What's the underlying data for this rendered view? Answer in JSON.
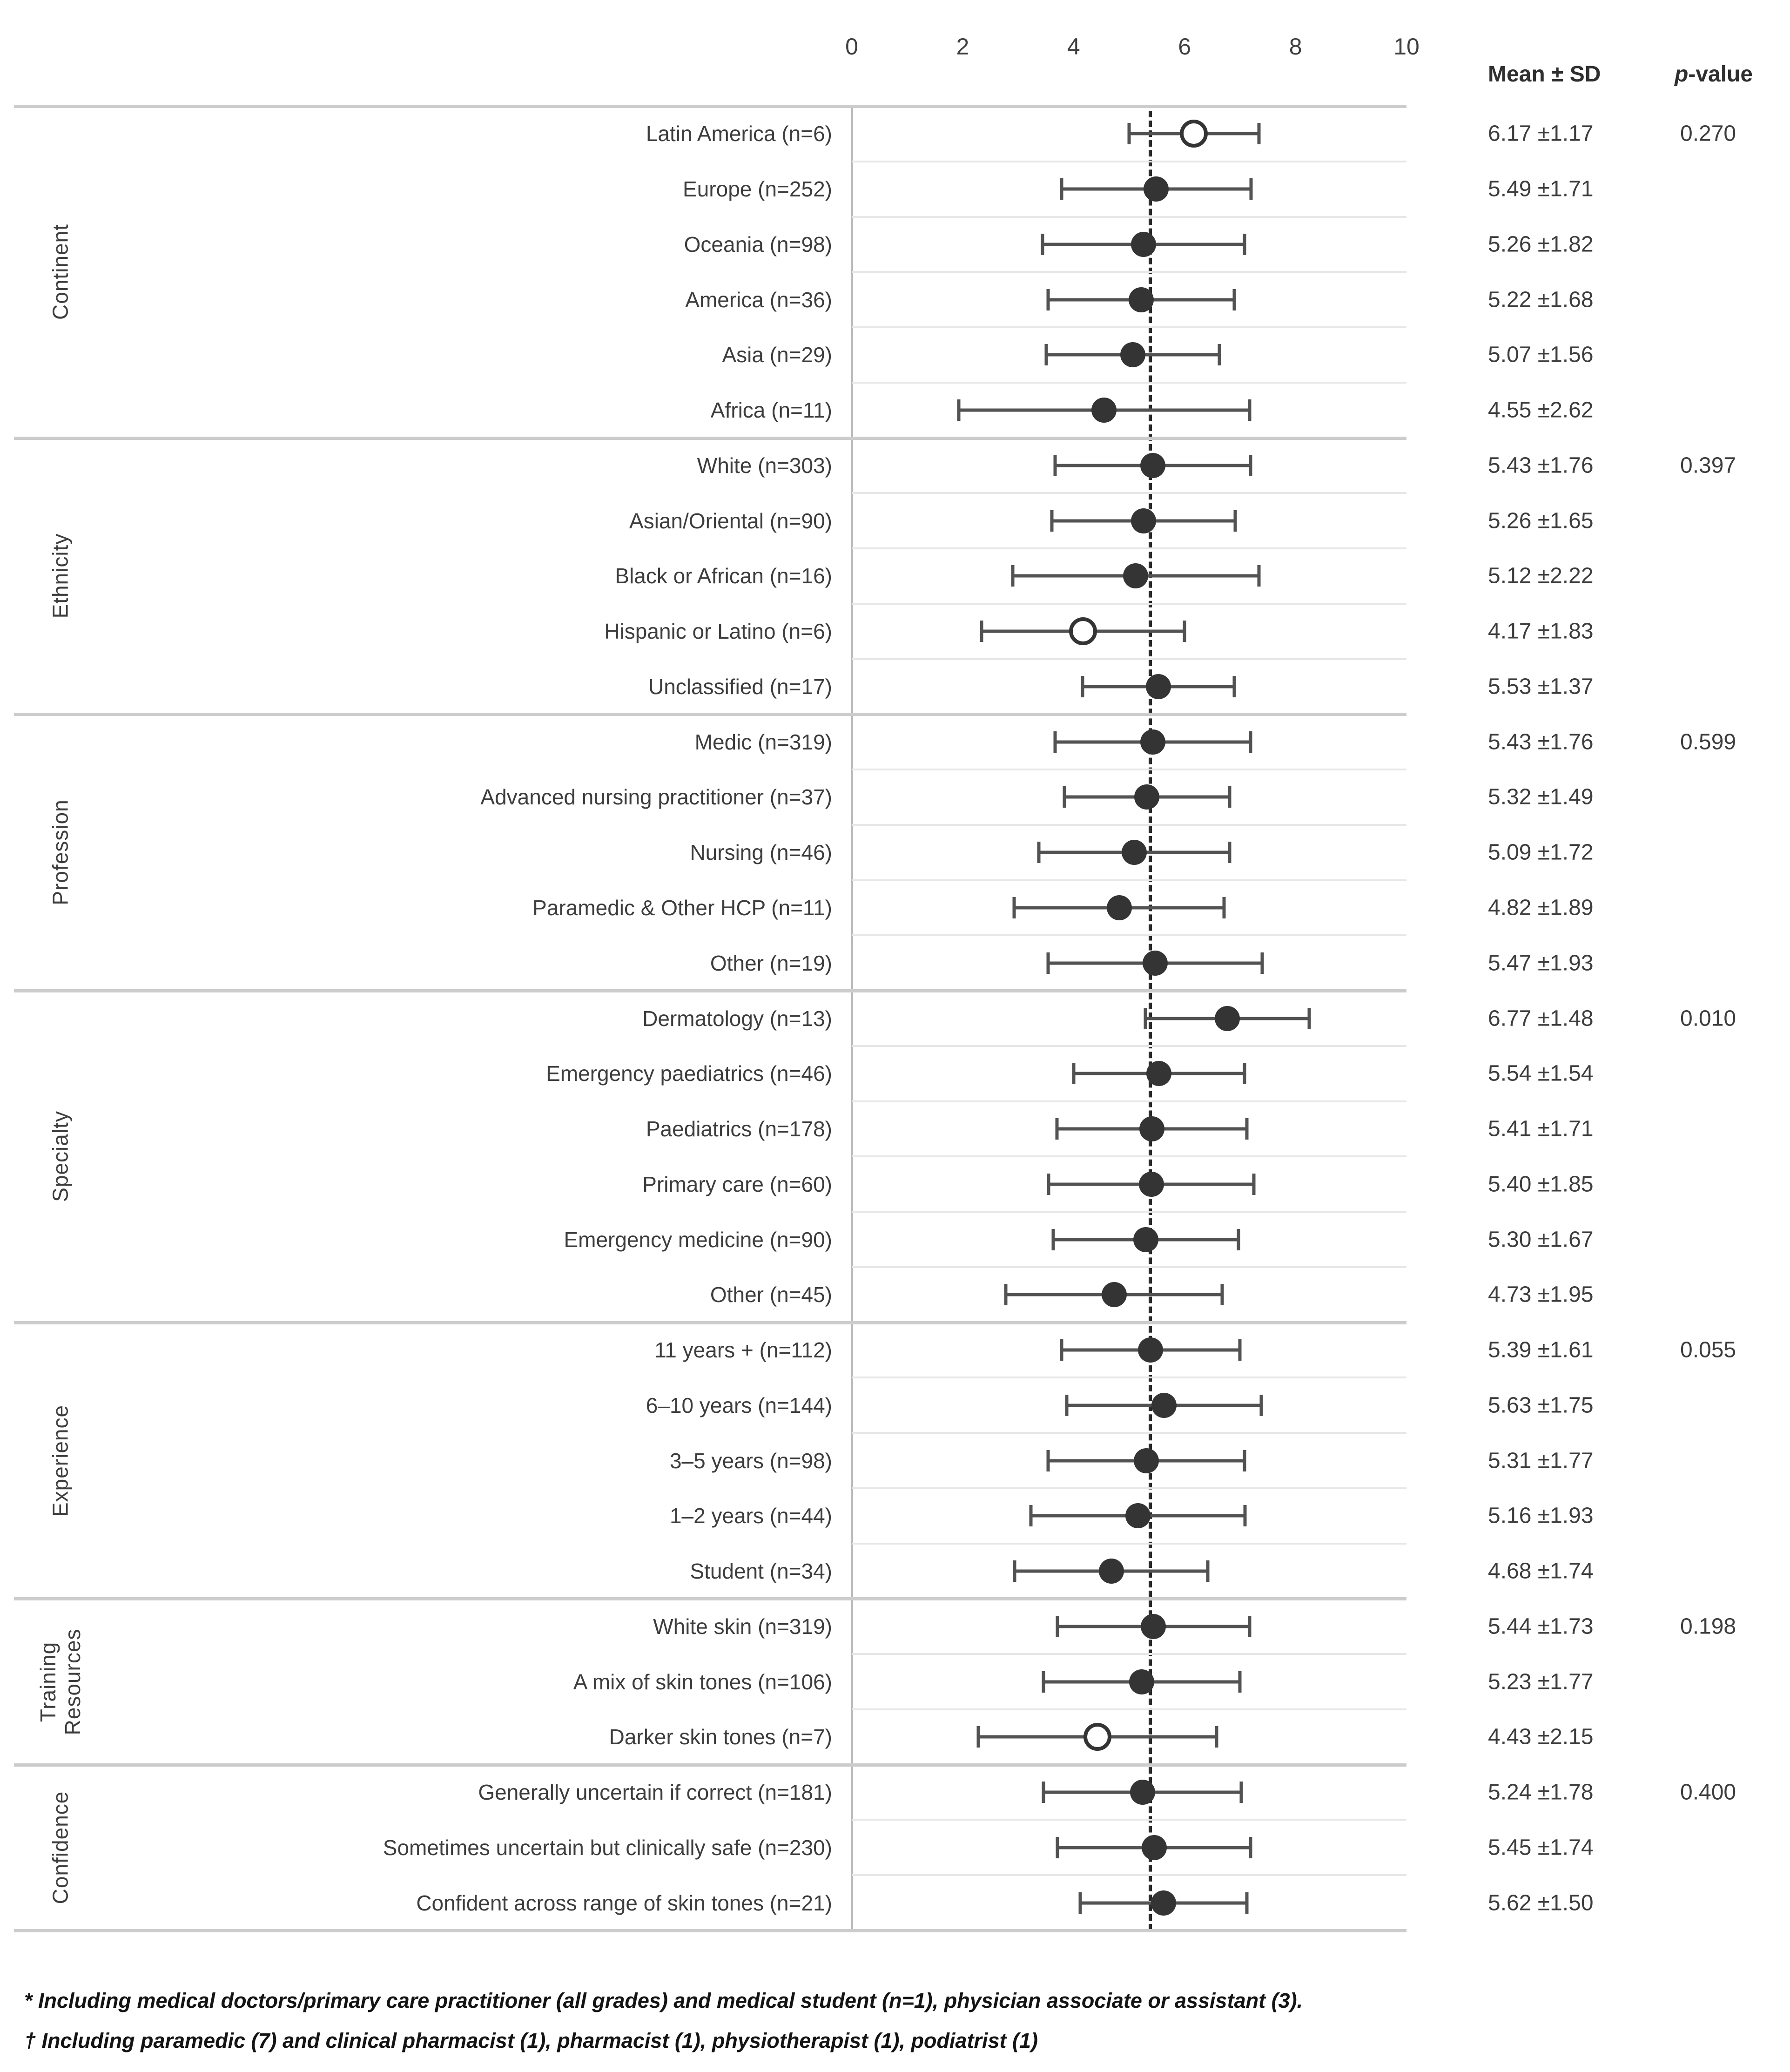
{
  "figure": {
    "headers": {
      "mean_sd": "Mean ± SD",
      "p_italic": "p",
      "p_rest": "-value"
    },
    "footnotes": [
      "* Including medical doctors/primary care practitioner (all grades) and medical student (n=1), physician associate or assistant (3).",
      "† Including paramedic (7) and clinical pharmacist (1), pharmacist (1), physiotherapist (1), podiatrist (1)"
    ]
  },
  "chart_data": {
    "type": "scatter",
    "subtype": "forest-plot-dot-whisker",
    "title": "",
    "xlabel": "",
    "ylabel": "",
    "xlim": [
      0,
      10
    ],
    "x_ticks": [
      0,
      2,
      4,
      6,
      8,
      10
    ],
    "grid": "row-separators",
    "reference_line": 5.38,
    "columns": [
      "Mean ± SD",
      "p-value"
    ],
    "groups": [
      {
        "name": "Continent",
        "p_value": "0.270",
        "rows": [
          {
            "label": "Latin America (n=6)",
            "mean": 6.17,
            "sd": 1.17,
            "mean_sd": "6.17 ±1.17",
            "open": true
          },
          {
            "label": "Europe (n=252)",
            "mean": 5.49,
            "sd": 1.71,
            "mean_sd": "5.49 ±1.71",
            "open": false
          },
          {
            "label": "Oceania (n=98)",
            "mean": 5.26,
            "sd": 1.82,
            "mean_sd": "5.26 ±1.82",
            "open": false
          },
          {
            "label": "America (n=36)",
            "mean": 5.22,
            "sd": 1.68,
            "mean_sd": "5.22 ±1.68",
            "open": false
          },
          {
            "label": "Asia (n=29)",
            "mean": 5.07,
            "sd": 1.56,
            "mean_sd": "5.07 ±1.56",
            "open": false
          },
          {
            "label": "Africa  (n=11)",
            "mean": 4.55,
            "sd": 2.62,
            "mean_sd": "4.55 ±2.62",
            "open": false
          }
        ]
      },
      {
        "name": "Ethnicity",
        "p_value": "0.397",
        "rows": [
          {
            "label": "White (n=303)",
            "mean": 5.43,
            "sd": 1.76,
            "mean_sd": "5.43 ±1.76",
            "open": false
          },
          {
            "label": "Asian/Oriental (n=90)",
            "mean": 5.26,
            "sd": 1.65,
            "mean_sd": "5.26 ±1.65",
            "open": false
          },
          {
            "label": "Black or African (n=16)",
            "mean": 5.12,
            "sd": 2.22,
            "mean_sd": "5.12 ±2.22",
            "open": false
          },
          {
            "label": "Hispanic or Latino (n=6)",
            "mean": 4.17,
            "sd": 1.83,
            "mean_sd": "4.17 ±1.83",
            "open": true
          },
          {
            "label": "Unclassified (n=17)",
            "mean": 5.53,
            "sd": 1.37,
            "mean_sd": "5.53 ±1.37",
            "open": false
          }
        ]
      },
      {
        "name": "Profession",
        "p_value": "0.599",
        "rows": [
          {
            "label": "Medic (n=319)",
            "mean": 5.43,
            "sd": 1.76,
            "mean_sd": "5.43 ±1.76",
            "open": false
          },
          {
            "label": "Advanced nursing practitioner (n=37)",
            "mean": 5.32,
            "sd": 1.49,
            "mean_sd": "5.32 ±1.49",
            "open": false
          },
          {
            "label": "Nursing (n=46)",
            "mean": 5.09,
            "sd": 1.72,
            "mean_sd": "5.09 ±1.72",
            "open": false
          },
          {
            "label": "Paramedic & Other HCP (n=11)",
            "mean": 4.82,
            "sd": 1.89,
            "mean_sd": "4.82 ±1.89",
            "open": false
          },
          {
            "label": "Other (n=19)",
            "mean": 5.47,
            "sd": 1.93,
            "mean_sd": "5.47 ±1.93",
            "open": false
          }
        ]
      },
      {
        "name": "Specialty",
        "p_value": "0.010",
        "rows": [
          {
            "label": "Dermatology (n=13)",
            "mean": 6.77,
            "sd": 1.48,
            "mean_sd": "6.77 ±1.48",
            "open": false
          },
          {
            "label": "Emergency paediatrics (n=46)",
            "mean": 5.54,
            "sd": 1.54,
            "mean_sd": "5.54 ±1.54",
            "open": false
          },
          {
            "label": "Paediatrics (n=178)",
            "mean": 5.41,
            "sd": 1.71,
            "mean_sd": "5.41 ±1.71",
            "open": false
          },
          {
            "label": "Primary care (n=60)",
            "mean": 5.4,
            "sd": 1.85,
            "mean_sd": "5.40 ±1.85",
            "open": false
          },
          {
            "label": "Emergency medicine (n=90)",
            "mean": 5.3,
            "sd": 1.67,
            "mean_sd": "5.30 ±1.67",
            "open": false
          },
          {
            "label": "Other (n=45)",
            "mean": 4.73,
            "sd": 1.95,
            "mean_sd": "4.73 ±1.95",
            "open": false
          }
        ]
      },
      {
        "name": "Experience",
        "p_value": "0.055",
        "rows": [
          {
            "label": "11 years + (n=112)",
            "mean": 5.39,
            "sd": 1.61,
            "mean_sd": "5.39 ±1.61",
            "open": false
          },
          {
            "label": "6–10 years (n=144)",
            "mean": 5.63,
            "sd": 1.75,
            "mean_sd": "5.63 ±1.75",
            "open": false
          },
          {
            "label": "3–5 years (n=98)",
            "mean": 5.31,
            "sd": 1.77,
            "mean_sd": "5.31 ±1.77",
            "open": false
          },
          {
            "label": "1–2 years (n=44)",
            "mean": 5.16,
            "sd": 1.93,
            "mean_sd": "5.16 ±1.93",
            "open": false
          },
          {
            "label": "Student (n=34)",
            "mean": 4.68,
            "sd": 1.74,
            "mean_sd": "4.68 ±1.74",
            "open": false
          }
        ]
      },
      {
        "name": "Training\nResources",
        "p_value": "0.198",
        "rows": [
          {
            "label": "White skin (n=319)",
            "mean": 5.44,
            "sd": 1.73,
            "mean_sd": "5.44 ±1.73",
            "open": false
          },
          {
            "label": "A mix of skin tones (n=106)",
            "mean": 5.23,
            "sd": 1.77,
            "mean_sd": "5.23 ±1.77",
            "open": false
          },
          {
            "label": "Darker skin tones (n=7)",
            "mean": 4.43,
            "sd": 2.15,
            "mean_sd": "4.43 ±2.15",
            "open": true
          }
        ]
      },
      {
        "name": "Confidence",
        "p_value": "0.400",
        "rows": [
          {
            "label": "Generally uncertain if correct (n=181)",
            "mean": 5.24,
            "sd": 1.78,
            "mean_sd": "5.24 ±1.78",
            "open": false
          },
          {
            "label": "Sometimes uncertain but clinically safe (n=230)",
            "mean": 5.45,
            "sd": 1.74,
            "mean_sd": "5.45 ±1.74",
            "open": false
          },
          {
            "label": "Confident across range of skin tones (n=21)",
            "mean": 5.62,
            "sd": 1.5,
            "mean_sd": "5.62 ±1.50",
            "open": false
          }
        ]
      }
    ]
  }
}
